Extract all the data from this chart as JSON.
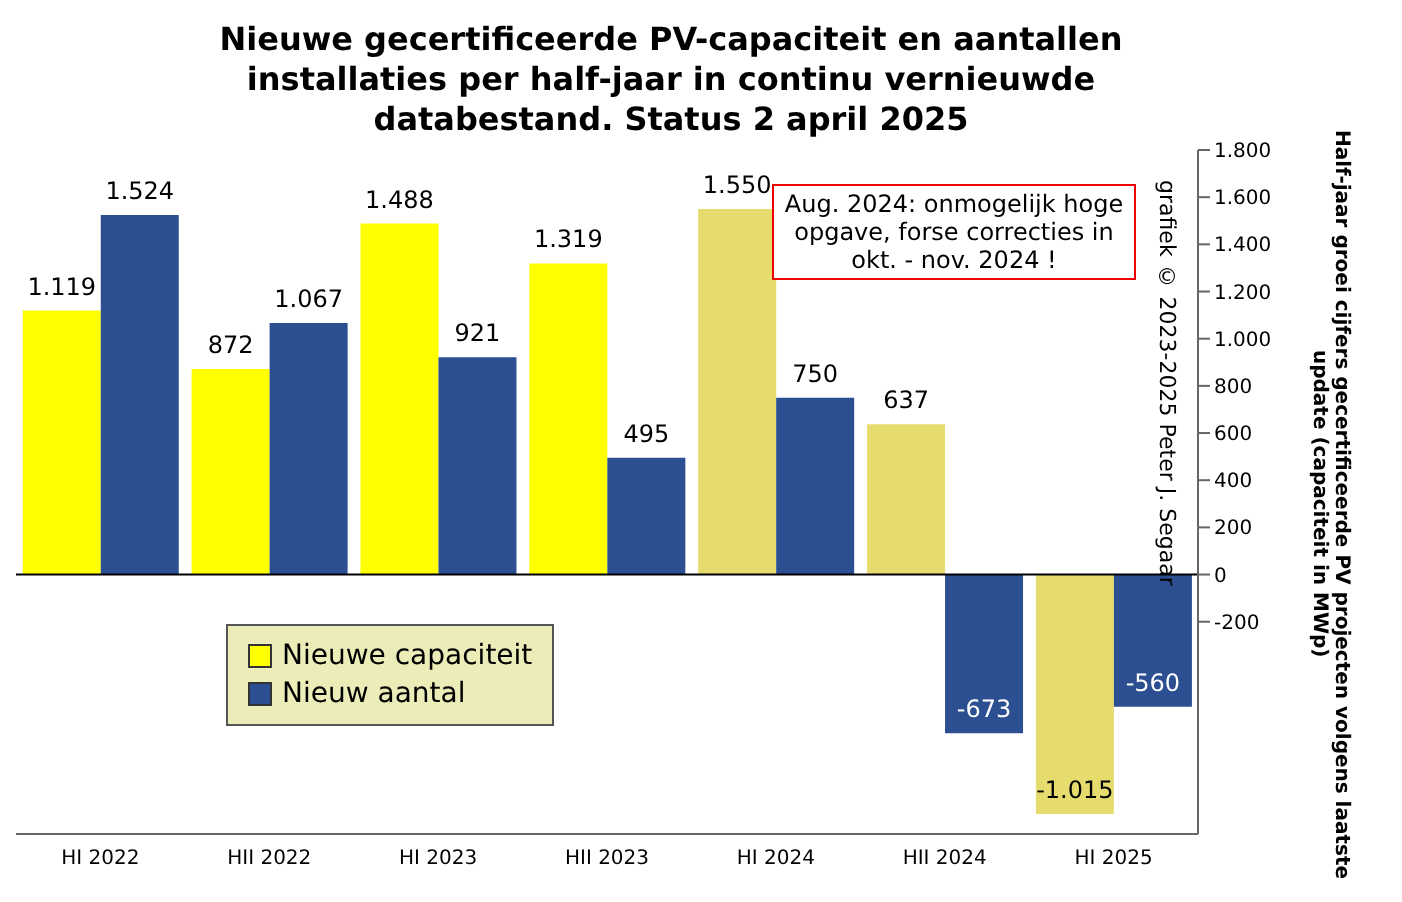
{
  "chart_data": {
    "type": "bar",
    "title": "Nieuwe gecertificeerde PV-capaciteit en aantallen installaties per half-jaar in continu vernieuwde databestand. Status 2 april 2025",
    "y2label": "Half-jaar groei cijfers gecertificeerde PV projecten volgens laatste update (capaciteit in MWp)",
    "categories": [
      "HI 2022",
      "HII 2022",
      "HI 2023",
      "HII 2023",
      "HI 2024",
      "HII 2024",
      "HI 2025"
    ],
    "series": [
      {
        "name": "Nieuwe capaciteit",
        "color": "#ffff00",
        "colors": [
          "#ffff00",
          "#ffff00",
          "#ffff00",
          "#ffff00",
          "#e6dc6e",
          "#e6dc6e",
          "#e6dc6e"
        ],
        "values": [
          1119,
          872,
          1488,
          1319,
          1550,
          637,
          -1015
        ],
        "value_labels": [
          "1.119",
          "872",
          "1.488",
          "1.319",
          "1.550",
          "637",
          "-1.015"
        ],
        "axis": "y2"
      },
      {
        "name": "Nieuw aantal",
        "color": "#2b4f91",
        "values": [
          1524,
          1067,
          921,
          495,
          750,
          -673,
          -560
        ],
        "value_labels": [
          "1.524",
          "1.067",
          "921",
          "495",
          "750",
          "-673",
          "-560"
        ],
        "axis": "y2"
      }
    ],
    "y2lim": [
      -1100,
      1800
    ],
    "y2ticks": [
      {
        "value": -200,
        "label": "-200"
      },
      {
        "value": 0,
        "label": "0"
      },
      {
        "value": 200,
        "label": "200"
      },
      {
        "value": 400,
        "label": "400"
      },
      {
        "value": 600,
        "label": "600"
      },
      {
        "value": 800,
        "label": "800"
      },
      {
        "value": 1000,
        "label": "1.000"
      },
      {
        "value": 1200,
        "label": "1.200"
      },
      {
        "value": 1400,
        "label": "1.400"
      },
      {
        "value": 1600,
        "label": "1.600"
      },
      {
        "value": 1800,
        "label": "1.800"
      }
    ],
    "legend": "bottom left",
    "annotations": [
      "Aug. 2024: onmogelijk hoge opgave, forse correcties in okt. - nov. 2024 !",
      "grafiek © 2023-2025 Peter J. Segaar"
    ]
  }
}
